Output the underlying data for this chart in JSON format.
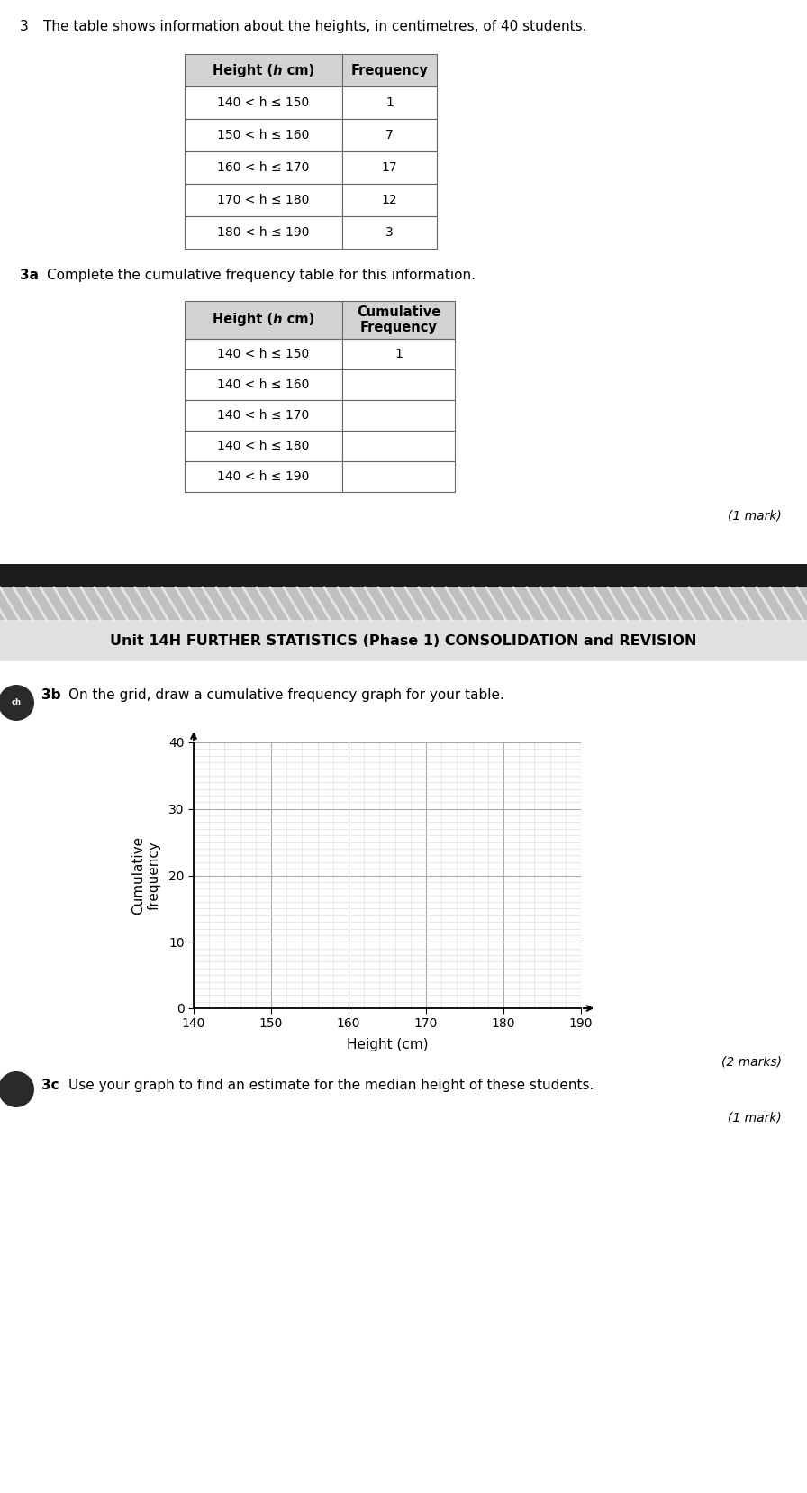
{
  "title_q": "3",
  "title_text": "The table shows information about the heights, in centimetres, of 40 students.",
  "table1_rows": [
    [
      "140 < h ≤ 150",
      "1"
    ],
    [
      "150 < h ≤ 160",
      "7"
    ],
    [
      "160 < h ≤ 170",
      "17"
    ],
    [
      "170 < h ≤ 180",
      "12"
    ],
    [
      "180 < h ≤ 190",
      "3"
    ]
  ],
  "q3a_label": "3a",
  "q3a_text": "Complete the cumulative frequency table for this information.",
  "table2_rows": [
    [
      "140 < h ≤ 150",
      "1"
    ],
    [
      "140 < h ≤ 160",
      ""
    ],
    [
      "140 < h ≤ 170",
      ""
    ],
    [
      "140 < h ≤ 180",
      ""
    ],
    [
      "140 < h ≤ 190",
      ""
    ]
  ],
  "mark1_text": "(1 mark)",
  "banner_text": "Unit 14H FURTHER STATISTICS (Phase 1) CONSOLIDATION and REVISION",
  "q3b_label": "3b",
  "q3b_text": "On the grid, draw a cumulative frequency graph for your table.",
  "graph_ylabel": "Cumulative\nfrequency",
  "graph_xlabel": "Height (cm)",
  "graph_yticks": [
    0,
    10,
    20,
    30,
    40
  ],
  "graph_xticks": [
    140,
    150,
    160,
    170,
    180,
    190
  ],
  "mark2_text": "(2 marks)",
  "q3c_label": "3c",
  "q3c_text": "Use your graph to find an estimate for the median height of these students.",
  "mark3_text": "(1 mark)",
  "bg_white": "#ffffff",
  "bg_banner_dark": "#1c1c1c",
  "bg_banner_stripe": "#c0c0c0",
  "bg_section_light": "#e0e0e0",
  "table_header_bg": "#d3d3d3",
  "table_border": "#666666",
  "grid_minor_color": "#d8d8d8",
  "grid_major_color": "#aaaaaa"
}
